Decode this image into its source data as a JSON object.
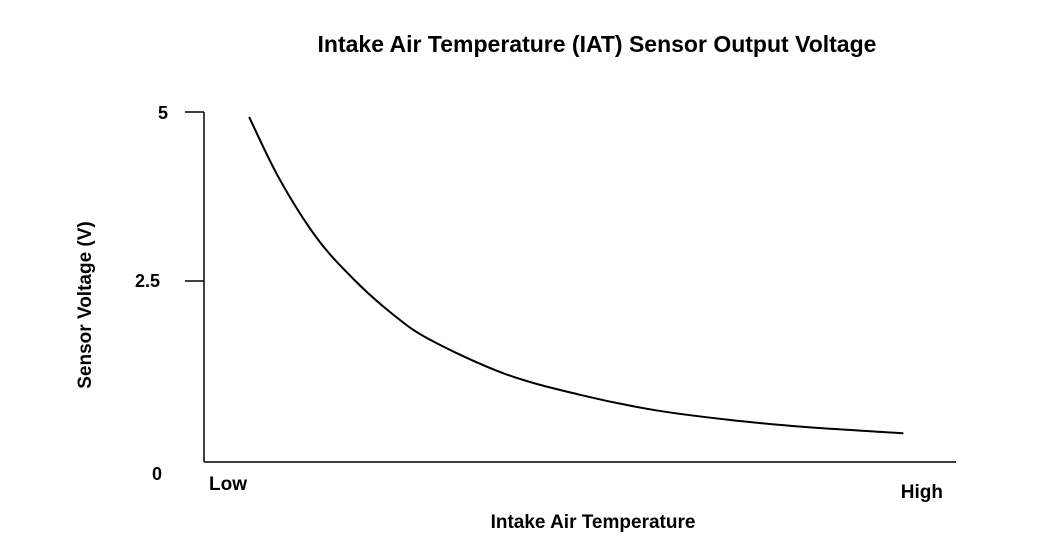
{
  "chart_data": {
    "type": "line",
    "title": "Intake Air Temperature (IAT) Sensor Output Voltage",
    "xlabel": "Intake Air Temperature",
    "ylabel": "Sensor Voltage (V)",
    "x_tick_labels": [
      "Low",
      "High"
    ],
    "y_ticks": [
      "5",
      "2.5",
      "0"
    ],
    "ylim": [
      0,
      5
    ],
    "xlim": [
      0,
      1
    ],
    "grid": false,
    "series": [
      {
        "x": [
          0.06,
          0.1,
          0.15,
          0.2,
          0.25,
          0.3,
          0.4,
          0.5,
          0.6,
          0.7,
          0.8,
          0.9,
          0.93
        ],
        "values": [
          4.93,
          4.05,
          3.2,
          2.6,
          2.12,
          1.75,
          1.26,
          0.96,
          0.74,
          0.6,
          0.5,
          0.43,
          0.41
        ]
      }
    ],
    "colors": {
      "line": "#000000",
      "axis": "#000000"
    }
  }
}
